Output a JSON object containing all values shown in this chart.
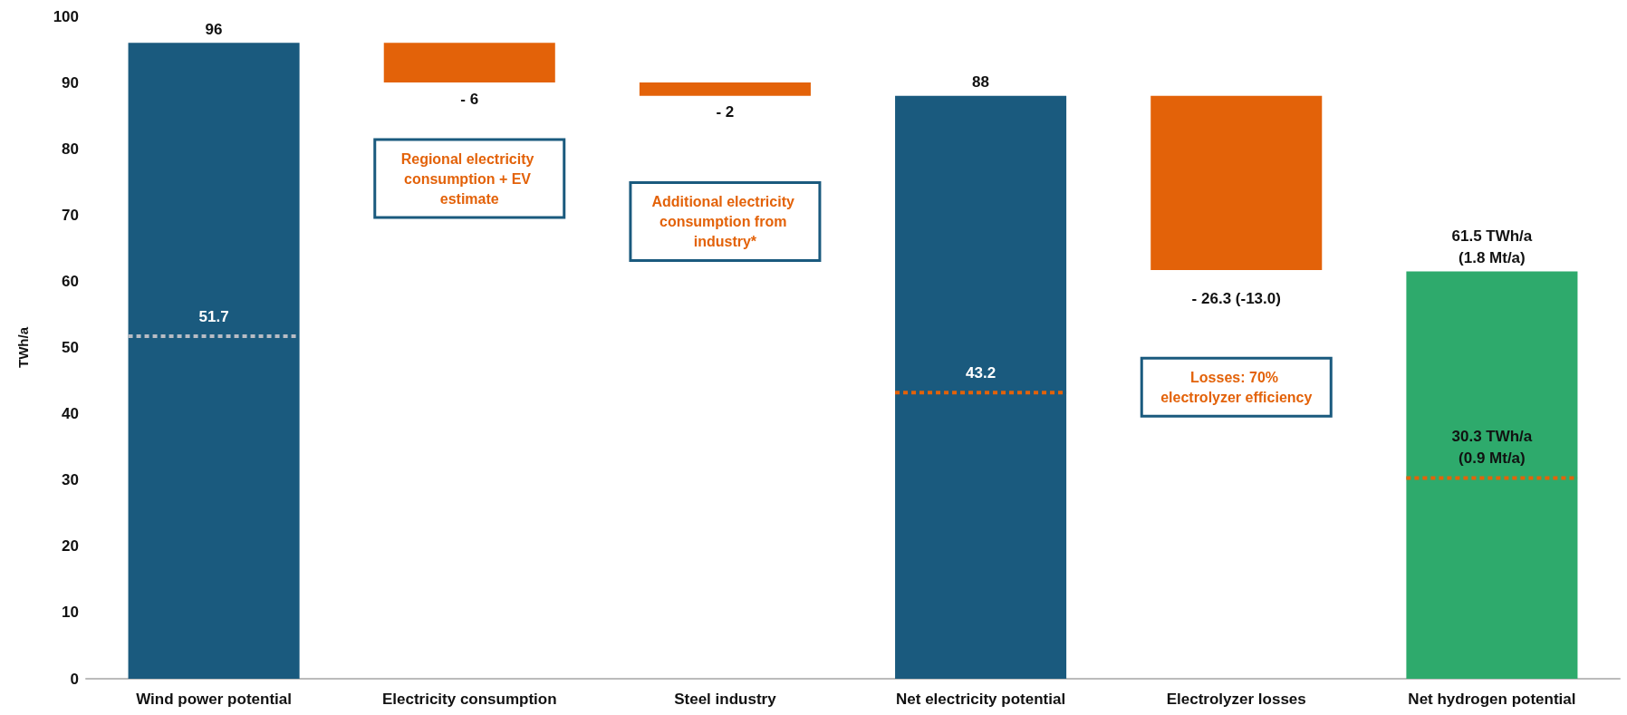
{
  "chart_data": {
    "type": "bar",
    "ylabel": "TWh/a",
    "categories": [
      "Wind power potential",
      "Electricity consumption",
      "Steel industry",
      "Net electricity potential",
      "Electrolyzer losses",
      "Net hydrogen potential"
    ],
    "series": [
      {
        "values": [
          96,
          -6,
          -2,
          88,
          -26.3,
          61.5
        ],
        "base": [
          0,
          96,
          90,
          0,
          88,
          0
        ],
        "colors": [
          "#1a5a7e",
          "#e36209",
          "#e36209",
          "#1a5a7e",
          "#e36209",
          "#2eaa6c"
        ],
        "value_labels": [
          "96",
          "- 6",
          "- 2",
          "88",
          "- 26.3 (-13.0)",
          "61.5 TWh/a\n(1.8 Mt/a)"
        ]
      }
    ],
    "ref_lines": [
      {
        "axis": "y",
        "value": 51.7,
        "label": "51.7",
        "color": "#b8bcc4",
        "line_style": "dotted"
      },
      {
        "axis": "y",
        "value": 43.2,
        "label": "43.2",
        "color": "#e36209",
        "line_style": "dotted"
      },
      {
        "axis": "y",
        "value": 30.3,
        "label": "30.3 TWh/a\n(0.9 Mt/a)",
        "color": "#e36209",
        "line_style": "dotted"
      }
    ],
    "ylim": [
      0,
      100
    ],
    "yticks": [
      0,
      10,
      20,
      30,
      40,
      50,
      60,
      70,
      80,
      90,
      100
    ],
    "grid": false,
    "annotations": [
      "Regional electricity consumption + EV estimate",
      "Additional electricity consumption from industry*",
      "Losses: 70% electrolyzer efficiency"
    ]
  }
}
